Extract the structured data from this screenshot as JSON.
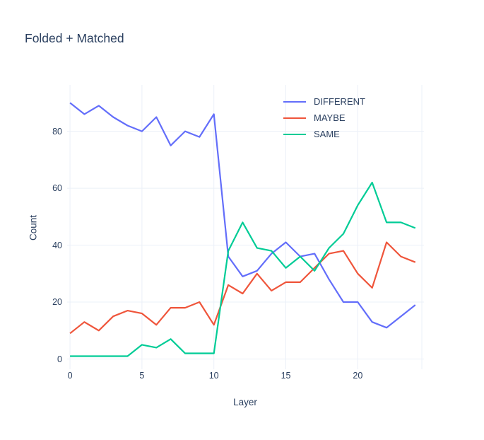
{
  "title": "Folded + Matched",
  "chart_data": {
    "type": "line",
    "title": "Folded + Matched",
    "xlabel": "Layer",
    "ylabel": "Count",
    "x": [
      0,
      1,
      2,
      3,
      4,
      5,
      6,
      7,
      8,
      9,
      10,
      11,
      12,
      13,
      14,
      15,
      16,
      17,
      18,
      19,
      20,
      21,
      22,
      23,
      24
    ],
    "series": [
      {
        "name": "DIFFERENT",
        "color": "#636EFA",
        "values": [
          90,
          86,
          89,
          85,
          82,
          80,
          85,
          75,
          80,
          78,
          86,
          36,
          29,
          31,
          37,
          41,
          36,
          37,
          28,
          20,
          20,
          13,
          11,
          15,
          19
        ]
      },
      {
        "name": "MAYBE",
        "color": "#EF553B",
        "values": [
          9,
          13,
          10,
          15,
          17,
          16,
          12,
          18,
          18,
          20,
          12,
          26,
          23,
          30,
          24,
          27,
          27,
          32,
          37,
          38,
          30,
          25,
          41,
          36,
          34
        ]
      },
      {
        "name": "SAME",
        "color": "#00CC96",
        "values": [
          1,
          1,
          1,
          1,
          1,
          5,
          4,
          7,
          2,
          2,
          2,
          38,
          48,
          39,
          38,
          32,
          36,
          31,
          39,
          44,
          54,
          62,
          48,
          48,
          46
        ]
      }
    ],
    "x_ticks": [
      0,
      5,
      10,
      15,
      20
    ],
    "y_ticks": [
      0,
      20,
      40,
      60,
      80
    ],
    "xlim": [
      -0.2,
      24.6
    ],
    "ylim": [
      -3.6,
      96.3
    ],
    "grid": true,
    "legend_position": "top-right",
    "colors": {
      "text": "#2a3f5f",
      "grid": "#EBF0F8",
      "background": "#ffffff"
    }
  }
}
